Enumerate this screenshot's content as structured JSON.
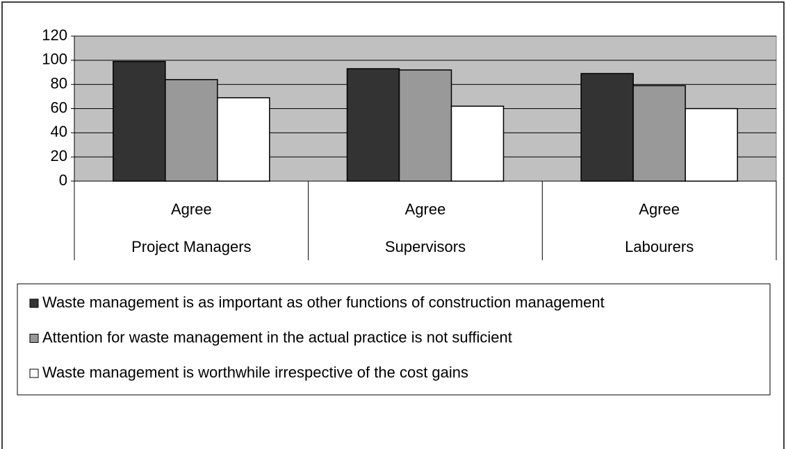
{
  "chart_data": {
    "type": "bar",
    "categories": [
      "Agree",
      "Agree",
      "Agree"
    ],
    "groups": [
      "Project Managers",
      "Supervisors",
      "Labourers"
    ],
    "series": [
      {
        "name": "Waste management is as important as other functions of construction management",
        "color": "#333333",
        "values": [
          99,
          93,
          89
        ]
      },
      {
        "name": "Attention for waste management in the actual practice is not sufficient",
        "color": "#999999",
        "values": [
          84,
          92,
          79
        ]
      },
      {
        "name": "Waste management is worthwhile irrespective of the cost gains",
        "color": "#ffffff",
        "values": [
          69,
          62,
          60
        ]
      }
    ],
    "ylim": [
      0,
      120
    ],
    "yticks": [
      0,
      20,
      40,
      60,
      80,
      100,
      120
    ],
    "grid": true,
    "plot_background": "#c0c0c0",
    "legend": "bottom"
  }
}
